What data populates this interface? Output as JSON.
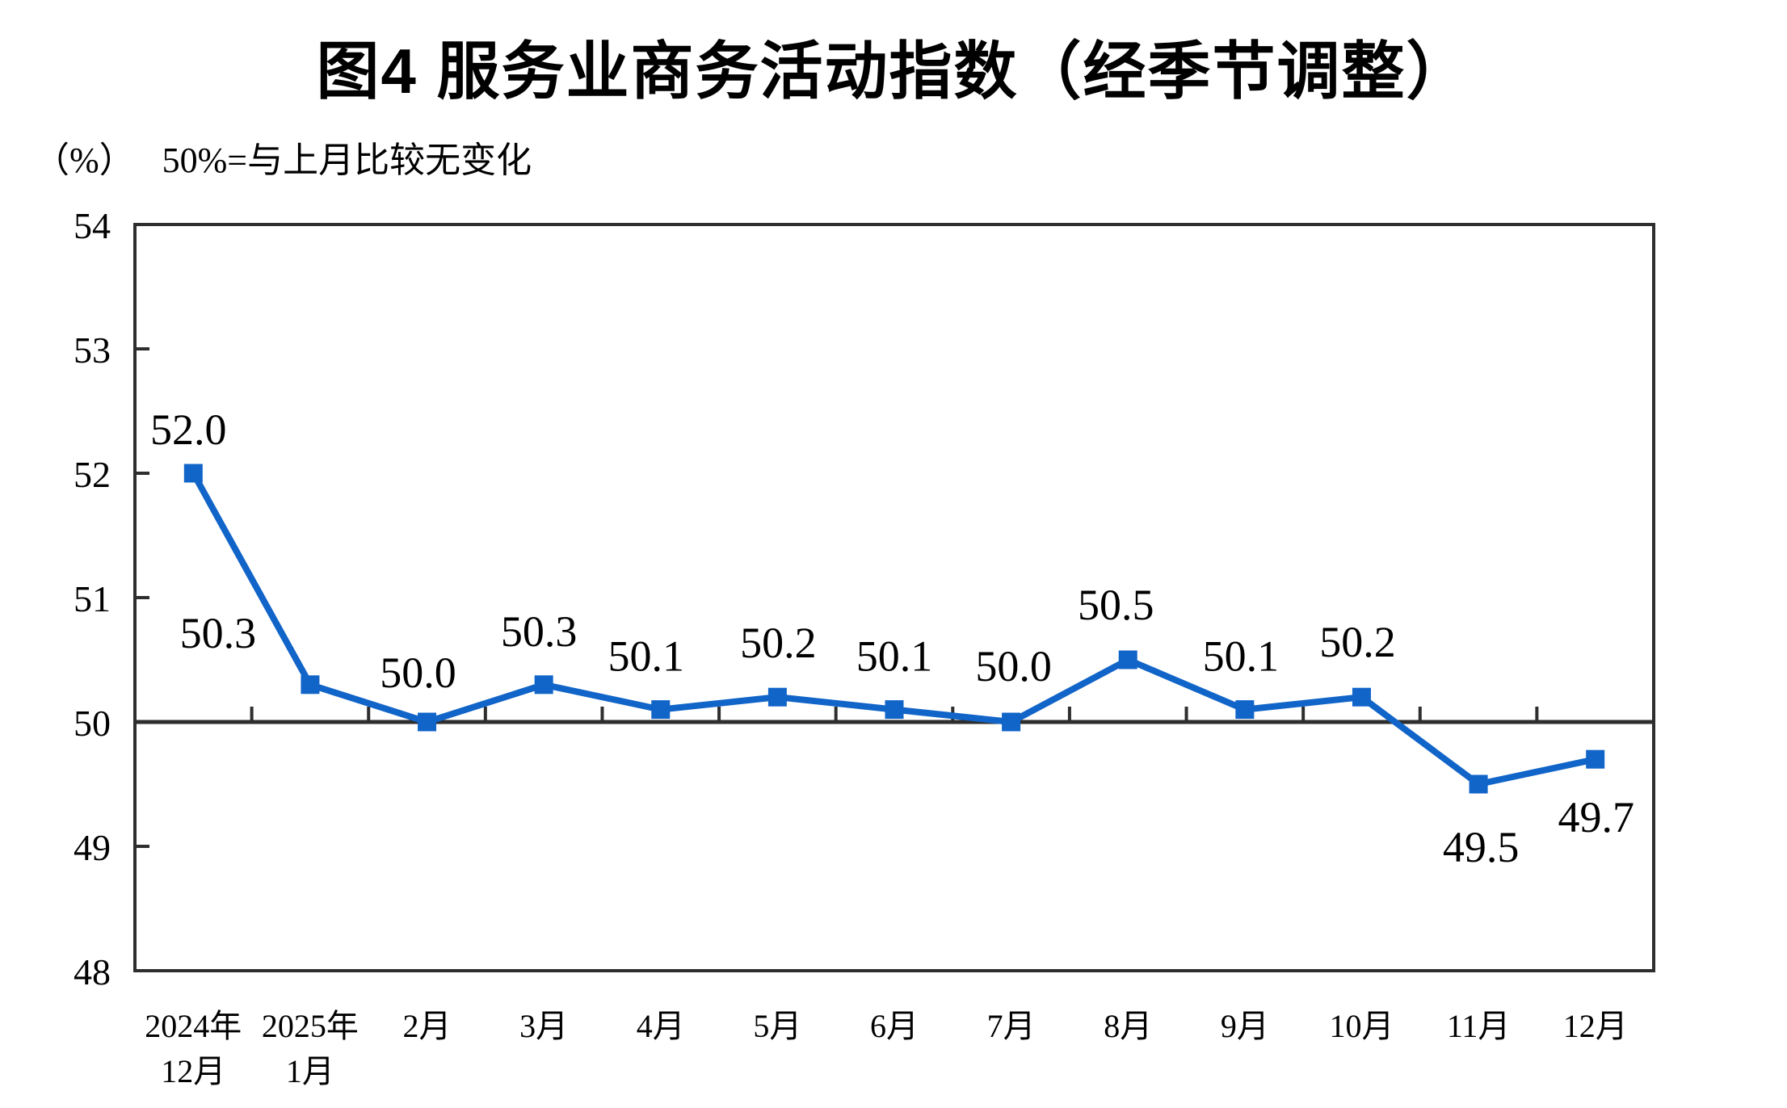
{
  "chart_data": {
    "type": "line",
    "title": "图4 服务业商务活动指数（经季节调整）",
    "unit_label": "（%）",
    "note": "50%=与上月比较无变化",
    "series_name": "服务业商务活动指数",
    "categories": [
      [
        "2024年",
        "12月"
      ],
      [
        "2025年",
        "1月"
      ],
      [
        "2月"
      ],
      [
        "3月"
      ],
      [
        "4月"
      ],
      [
        "5月"
      ],
      [
        "6月"
      ],
      [
        "7月"
      ],
      [
        "8月"
      ],
      [
        "9月"
      ],
      [
        "10月"
      ],
      [
        "11月"
      ],
      [
        "12月"
      ]
    ],
    "values": [
      52.0,
      50.3,
      50.0,
      50.3,
      50.1,
      50.2,
      50.1,
      50.0,
      50.5,
      50.1,
      50.2,
      49.5,
      49.7
    ],
    "point_labels": [
      "52.0",
      "50.3",
      "50.0",
      "50.3",
      "50.1",
      "50.2",
      "50.1",
      "50.0",
      "50.5",
      "50.1",
      "50.2",
      "49.5",
      "49.7"
    ],
    "ylim": [
      48,
      54
    ],
    "y_ticks": [
      48,
      49,
      50,
      51,
      52,
      53,
      54
    ],
    "reference_value": 50,
    "grid": false,
    "legend_position": "none",
    "line_color": "#1164c8",
    "axis_color": "#2e2e2e",
    "text_color": "#000000"
  }
}
